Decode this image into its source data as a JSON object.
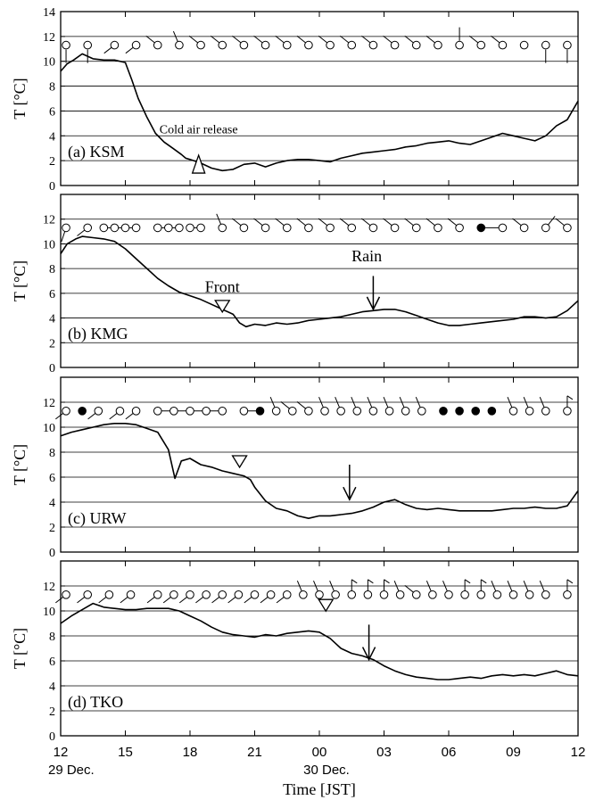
{
  "chart_data": [
    {
      "type": "line",
      "panel_label": "(a) KSM",
      "ylabel": "T [°C]",
      "ylim": [
        0,
        14
      ],
      "yticks": [
        0,
        2,
        4,
        6,
        8,
        10,
        12,
        14
      ],
      "grid": "horizontal",
      "x": [
        0,
        0.3,
        0.6,
        1,
        1.5,
        2,
        2.5,
        3,
        3.3,
        3.6,
        4,
        4.4,
        4.8,
        5.2,
        5.6,
        5.8,
        6,
        6.5,
        7,
        7.5,
        8,
        8.5,
        9,
        9.5,
        10,
        10.5,
        11,
        11.5,
        12,
        12.5,
        13,
        13.5,
        14,
        14.5,
        15,
        15.5,
        16,
        16.5,
        17,
        17.5,
        18,
        18.5,
        19,
        19.5,
        20,
        20.5,
        21,
        21.5,
        22,
        22.5,
        23,
        23.5,
        24
      ],
      "values": [
        9.2,
        9.8,
        10.1,
        10.6,
        10.2,
        10.1,
        10.1,
        9.9,
        8.5,
        7,
        5.5,
        4.2,
        3.5,
        3,
        2.5,
        2.2,
        2.1,
        1.8,
        1.4,
        1.2,
        1.3,
        1.7,
        1.8,
        1.5,
        1.8,
        2,
        2.1,
        2.1,
        2,
        1.9,
        2.2,
        2.4,
        2.6,
        2.7,
        2.8,
        2.9,
        3.1,
        3.2,
        3.4,
        3.5,
        3.6,
        3.4,
        3.3,
        3.6,
        3.9,
        4.2,
        4,
        3.8,
        3.6,
        4,
        4.8,
        5.3,
        6.8
      ],
      "annotations": [
        {
          "text": "Cold air release",
          "x": 6.4,
          "y": 4.2
        },
        {
          "marker": "open-triangle-up",
          "x": 6.4,
          "y": 1.0
        }
      ],
      "station_symbols": [
        {
          "x": 0.25,
          "wind": "calm",
          "stem": "down"
        },
        {
          "x": 1.25,
          "wind": "calm",
          "stem": "down"
        },
        {
          "x": 2.5,
          "wind": "calm",
          "barb": "sw"
        },
        {
          "x": 3.5,
          "wind": "calm",
          "barb": "sw"
        },
        {
          "x": 4.5,
          "wind": "calm",
          "barb": "nw"
        },
        {
          "x": 5.5,
          "wind": "nnw",
          "barb": "nnw"
        },
        {
          "x": 6.5,
          "wind": "calm",
          "barb": "nw"
        },
        {
          "x": 7.5,
          "wind": "calm",
          "barb": "nw"
        },
        {
          "x": 8.5,
          "wind": "calm",
          "barb": "nw"
        },
        {
          "x": 9.5,
          "wind": "calm",
          "barb": "nw"
        },
        {
          "x": 10.5,
          "wind": "calm",
          "barb": "nw"
        },
        {
          "x": 11.5,
          "wind": "calm",
          "barb": "nw"
        },
        {
          "x": 12.5,
          "wind": "calm",
          "barb": "nw"
        },
        {
          "x": 13.5,
          "wind": "calm",
          "barb": "nw"
        },
        {
          "x": 14.5,
          "wind": "calm",
          "barb": "nw"
        },
        {
          "x": 15.5,
          "wind": "calm",
          "barb": "nw"
        },
        {
          "x": 16.5,
          "wind": "calm",
          "barb": "nw"
        },
        {
          "x": 17.5,
          "wind": "calm",
          "barb": "nw"
        },
        {
          "x": 18.5,
          "wind": "calm",
          "stem": "up"
        },
        {
          "x": 19.5,
          "wind": "calm",
          "barb": "nw"
        },
        {
          "x": 20.5,
          "wind": "calm",
          "barb": "nw"
        },
        {
          "x": 21.5,
          "wind": "calm"
        },
        {
          "x": 22.5,
          "wind": "calm",
          "stem": "down"
        },
        {
          "x": 23.5,
          "wind": "calm",
          "stem": "down"
        }
      ]
    },
    {
      "type": "line",
      "panel_label": "(b) KMG",
      "ylabel": "T [°C]",
      "ylim": [
        0,
        14
      ],
      "yticks": [
        0,
        2,
        4,
        6,
        8,
        10,
        12
      ],
      "grid": "horizontal",
      "x": [
        0,
        0.3,
        0.7,
        1,
        1.5,
        2,
        2.5,
        3,
        3.5,
        4,
        4.5,
        5,
        5.5,
        6,
        6.5,
        7,
        7.5,
        8,
        8.3,
        8.6,
        9,
        9.5,
        10,
        10.5,
        11,
        11.5,
        12,
        12.5,
        13,
        13.5,
        14,
        14.5,
        15,
        15.5,
        16,
        16.5,
        17,
        17.5,
        18,
        18.5,
        19,
        19.5,
        20,
        20.5,
        21,
        21.5,
        22,
        22.5,
        23,
        23.5,
        24
      ],
      "values": [
        9.2,
        10.0,
        10.4,
        10.6,
        10.5,
        10.4,
        10.2,
        9.6,
        8.8,
        8.0,
        7.2,
        6.6,
        6.1,
        5.8,
        5.5,
        5.1,
        4.7,
        4.3,
        3.6,
        3.3,
        3.5,
        3.4,
        3.6,
        3.5,
        3.6,
        3.8,
        3.9,
        4.0,
        4.1,
        4.3,
        4.5,
        4.6,
        4.7,
        4.7,
        4.5,
        4.2,
        3.9,
        3.6,
        3.4,
        3.4,
        3.5,
        3.6,
        3.7,
        3.8,
        3.9,
        4.1,
        4.1,
        4.0,
        4.1,
        4.6,
        5.4
      ],
      "annotations": [
        {
          "text": "Front",
          "x": 7.5,
          "y": 6.1
        },
        {
          "marker": "open-triangle-down",
          "x": 7.5,
          "y": 4.7
        },
        {
          "text": "Rain",
          "x": 14.2,
          "y": 8.6
        },
        {
          "marker": "arrow-down",
          "x": 14.5,
          "y_top": 7.4,
          "y_bottom": 4.7
        }
      ],
      "station_symbols": [
        {
          "x": 0.25,
          "wind": "calm",
          "barb": "ssw"
        },
        {
          "x": 1.25,
          "wind": "calm",
          "barb": "sw"
        },
        {
          "x": 2.0,
          "wind": "calm",
          "line_to_next": true
        },
        {
          "x": 2.5,
          "wind": "calm",
          "line_to_next": true
        },
        {
          "x": 3.0,
          "wind": "calm",
          "line_to_next": true
        },
        {
          "x": 3.5,
          "wind": "calm"
        },
        {
          "x": 4.5,
          "wind": "calm",
          "line_to_next": true
        },
        {
          "x": 5.0,
          "wind": "calm",
          "line_to_next": true
        },
        {
          "x": 5.5,
          "wind": "calm"
        },
        {
          "x": 6.0,
          "wind": "calm",
          "line_to_next": true
        },
        {
          "x": 6.5,
          "wind": "calm"
        },
        {
          "x": 7.5,
          "wind": "calm",
          "barb": "nnw"
        },
        {
          "x": 8.5,
          "wind": "calm",
          "barb": "nw"
        },
        {
          "x": 9.5,
          "wind": "calm",
          "barb": "nw"
        },
        {
          "x": 10.5,
          "wind": "calm",
          "barb": "nw"
        },
        {
          "x": 11.5,
          "wind": "calm",
          "barb": "nw"
        },
        {
          "x": 12.5,
          "wind": "calm",
          "barb": "nw"
        },
        {
          "x": 13.5,
          "wind": "calm",
          "barb": "nw"
        },
        {
          "x": 14.5,
          "wind": "calm",
          "barb": "nw"
        },
        {
          "x": 15.5,
          "wind": "calm",
          "barb": "nw"
        },
        {
          "x": 16.5,
          "wind": "calm",
          "barb": "nw"
        },
        {
          "x": 17.5,
          "wind": "calm",
          "barb": "nw"
        },
        {
          "x": 18.5,
          "wind": "calm",
          "barb": "nw"
        },
        {
          "x": 19.5,
          "wind": "rain",
          "line_to_next": true
        },
        {
          "x": 20.5,
          "wind": "calm"
        },
        {
          "x": 21.5,
          "wind": "calm",
          "barb": "nw"
        },
        {
          "x": 22.5,
          "wind": "calm",
          "barb": "ne"
        },
        {
          "x": 23.5,
          "wind": "calm",
          "barb": "nw"
        }
      ]
    },
    {
      "type": "line",
      "panel_label": "(c) URW",
      "ylabel": "T [°C]",
      "ylim": [
        0,
        14
      ],
      "yticks": [
        0,
        2,
        4,
        6,
        8,
        10,
        12
      ],
      "grid": "horizontal",
      "x": [
        0,
        0.5,
        1,
        1.5,
        2,
        2.5,
        3,
        3.5,
        4,
        4.5,
        5,
        5.3,
        5.6,
        6,
        6.5,
        7,
        7.5,
        8,
        8.5,
        8.8,
        9,
        9.5,
        10,
        10.5,
        11,
        11.5,
        12,
        12.5,
        13,
        13.5,
        14,
        14.5,
        15,
        15.5,
        16,
        16.5,
        17,
        17.5,
        18,
        18.5,
        19,
        19.5,
        20,
        20.5,
        21,
        21.5,
        22,
        22.5,
        23,
        23.5,
        24
      ],
      "values": [
        9.3,
        9.6,
        9.8,
        10.0,
        10.2,
        10.3,
        10.3,
        10.2,
        9.9,
        9.6,
        8.2,
        5.9,
        7.3,
        7.5,
        7.0,
        6.8,
        6.5,
        6.3,
        6.1,
        5.8,
        5.2,
        4.1,
        3.5,
        3.3,
        2.9,
        2.7,
        2.9,
        2.9,
        3.0,
        3.1,
        3.3,
        3.6,
        4.0,
        4.2,
        3.8,
        3.5,
        3.4,
        3.5,
        3.4,
        3.3,
        3.3,
        3.3,
        3.3,
        3.4,
        3.5,
        3.5,
        3.6,
        3.5,
        3.5,
        3.7,
        4.9
      ],
      "annotations": [
        {
          "marker": "open-triangle-down",
          "x": 8.3,
          "y": 7.0
        },
        {
          "marker": "arrow-down",
          "x": 13.4,
          "y_top": 7.0,
          "y_bottom": 4.2
        }
      ],
      "station_symbols": [
        {
          "x": 0.25,
          "wind": "calm",
          "barb": "sw"
        },
        {
          "x": 1.0,
          "wind": "rain"
        },
        {
          "x": 1.75,
          "wind": "calm",
          "barb": "sw"
        },
        {
          "x": 2.75,
          "wind": "calm",
          "barb": "sw"
        },
        {
          "x": 3.5,
          "wind": "calm",
          "barb": "sw"
        },
        {
          "x": 4.5,
          "wind": "calm",
          "line_to_next": true
        },
        {
          "x": 5.25,
          "wind": "calm",
          "line_to_next": true
        },
        {
          "x": 6.0,
          "wind": "calm",
          "line_to_next": true
        },
        {
          "x": 6.75,
          "wind": "calm",
          "line_to_next": true
        },
        {
          "x": 7.5,
          "wind": "calm"
        },
        {
          "x": 8.5,
          "wind": "calm",
          "line_to_next": true
        },
        {
          "x": 9.25,
          "wind": "rain"
        },
        {
          "x": 10.0,
          "wind": "calm",
          "barb": "nnw"
        },
        {
          "x": 10.75,
          "wind": "calm",
          "barb": "nw"
        },
        {
          "x": 11.5,
          "wind": "calm",
          "barb": "nw"
        },
        {
          "x": 12.25,
          "wind": "calm",
          "barb": "nnw"
        },
        {
          "x": 13.0,
          "wind": "calm",
          "barb": "nnw"
        },
        {
          "x": 13.75,
          "wind": "calm",
          "barb": "nnw"
        },
        {
          "x": 14.5,
          "wind": "calm",
          "barb": "nnw"
        },
        {
          "x": 15.25,
          "wind": "calm",
          "barb": "nnw"
        },
        {
          "x": 16.0,
          "wind": "calm",
          "barb": "nnw"
        },
        {
          "x": 16.75,
          "wind": "calm",
          "barb": "nnw"
        },
        {
          "x": 17.75,
          "wind": "rain"
        },
        {
          "x": 18.5,
          "wind": "rain"
        },
        {
          "x": 19.25,
          "wind": "rain"
        },
        {
          "x": 20.0,
          "wind": "rain"
        },
        {
          "x": 21.0,
          "wind": "calm",
          "barb": "nnw"
        },
        {
          "x": 21.75,
          "wind": "calm",
          "barb": "nnw"
        },
        {
          "x": 22.5,
          "wind": "calm",
          "barb": "nnw"
        },
        {
          "x": 23.5,
          "wind": "calm",
          "barb": "n-flag"
        }
      ]
    },
    {
      "type": "line",
      "panel_label": "(d) TKO",
      "ylabel": "T [°C]",
      "ylim": [
        0,
        14
      ],
      "yticks": [
        0,
        2,
        4,
        6,
        8,
        10,
        12
      ],
      "grid": "horizontal",
      "x": [
        0,
        0.5,
        1,
        1.5,
        2,
        2.5,
        3,
        3.5,
        4,
        4.5,
        5,
        5.5,
        6,
        6.5,
        7,
        7.5,
        8,
        8.5,
        9,
        9.5,
        10,
        10.5,
        11,
        11.5,
        12,
        12.5,
        13,
        13.5,
        14,
        14.5,
        15,
        15.5,
        16,
        16.5,
        17,
        17.5,
        18,
        18.5,
        19,
        19.5,
        20,
        20.5,
        21,
        21.5,
        22,
        22.5,
        23,
        23.5,
        24
      ],
      "values": [
        9.0,
        9.6,
        10.1,
        10.6,
        10.3,
        10.2,
        10.1,
        10.1,
        10.2,
        10.2,
        10.2,
        10.0,
        9.6,
        9.2,
        8.7,
        8.3,
        8.1,
        8.0,
        7.9,
        8.1,
        8.0,
        8.2,
        8.3,
        8.4,
        8.3,
        7.8,
        7.0,
        6.6,
        6.4,
        6.1,
        5.6,
        5.2,
        4.9,
        4.7,
        4.6,
        4.5,
        4.5,
        4.6,
        4.7,
        4.6,
        4.8,
        4.9,
        4.8,
        4.9,
        4.8,
        5.0,
        5.2,
        4.9,
        4.8
      ],
      "annotations": [
        {
          "marker": "open-triangle-down",
          "x": 12.3,
          "y": 10.2
        },
        {
          "marker": "arrow-down",
          "x": 14.3,
          "y_top": 8.9,
          "y_bottom": 6.1
        }
      ],
      "station_symbols": [
        {
          "x": 0.25,
          "wind": "calm",
          "barb": "sw"
        },
        {
          "x": 1.25,
          "wind": "calm",
          "barb": "sw"
        },
        {
          "x": 2.25,
          "wind": "calm",
          "barb": "sw"
        },
        {
          "x": 3.25,
          "wind": "calm",
          "barb": "sw"
        },
        {
          "x": 4.5,
          "wind": "calm",
          "barb": "sw"
        },
        {
          "x": 5.25,
          "wind": "calm",
          "barb": "sw"
        },
        {
          "x": 6.0,
          "wind": "calm",
          "barb": "sw"
        },
        {
          "x": 6.75,
          "wind": "calm",
          "barb": "sw"
        },
        {
          "x": 7.5,
          "wind": "calm",
          "barb": "sw"
        },
        {
          "x": 8.25,
          "wind": "calm",
          "barb": "sw"
        },
        {
          "x": 9.0,
          "wind": "calm",
          "barb": "sw"
        },
        {
          "x": 9.75,
          "wind": "calm",
          "barb": "sw"
        },
        {
          "x": 10.5,
          "wind": "calm",
          "barb": "sw"
        },
        {
          "x": 11.25,
          "wind": "calm",
          "barb": "nnw"
        },
        {
          "x": 12.0,
          "wind": "calm",
          "barb": "nnw"
        },
        {
          "x": 12.75,
          "wind": "calm",
          "barb": "nnw"
        },
        {
          "x": 13.5,
          "wind": "calm",
          "barb": "n-flag"
        },
        {
          "x": 14.25,
          "wind": "calm",
          "barb": "n-flag"
        },
        {
          "x": 15.0,
          "wind": "calm",
          "barb": "n-flag"
        },
        {
          "x": 15.75,
          "wind": "calm",
          "barb": "nnw"
        },
        {
          "x": 16.5,
          "wind": "calm",
          "barb": "nw"
        },
        {
          "x": 17.25,
          "wind": "calm",
          "barb": "nnw"
        },
        {
          "x": 18.0,
          "wind": "calm",
          "barb": "nnw"
        },
        {
          "x": 18.75,
          "wind": "calm",
          "barb": "n-flag"
        },
        {
          "x": 19.5,
          "wind": "calm",
          "barb": "n-flag"
        },
        {
          "x": 20.25,
          "wind": "calm",
          "barb": "nnw"
        },
        {
          "x": 21.0,
          "wind": "calm",
          "barb": "nnw"
        },
        {
          "x": 21.75,
          "wind": "calm",
          "barb": "nnw"
        },
        {
          "x": 22.5,
          "wind": "calm",
          "barb": "nnw"
        },
        {
          "x": 23.5,
          "wind": "calm",
          "barb": "n-flag"
        }
      ]
    }
  ],
  "x_axis": {
    "ticks": [
      0,
      3,
      6,
      9,
      12,
      15,
      18,
      21,
      24
    ],
    "tick_labels": [
      "12",
      "15",
      "18",
      "21",
      "00",
      "03",
      "06",
      "09",
      "12"
    ],
    "date_labels": [
      {
        "x": 0,
        "text": "29 Dec."
      },
      {
        "x": 12,
        "text": "30 Dec."
      }
    ],
    "xlabel": "Time [JST]",
    "xlim": [
      0,
      24
    ]
  },
  "colors": {
    "line": "#000000",
    "grid": "#000000",
    "background": "#ffffff"
  }
}
